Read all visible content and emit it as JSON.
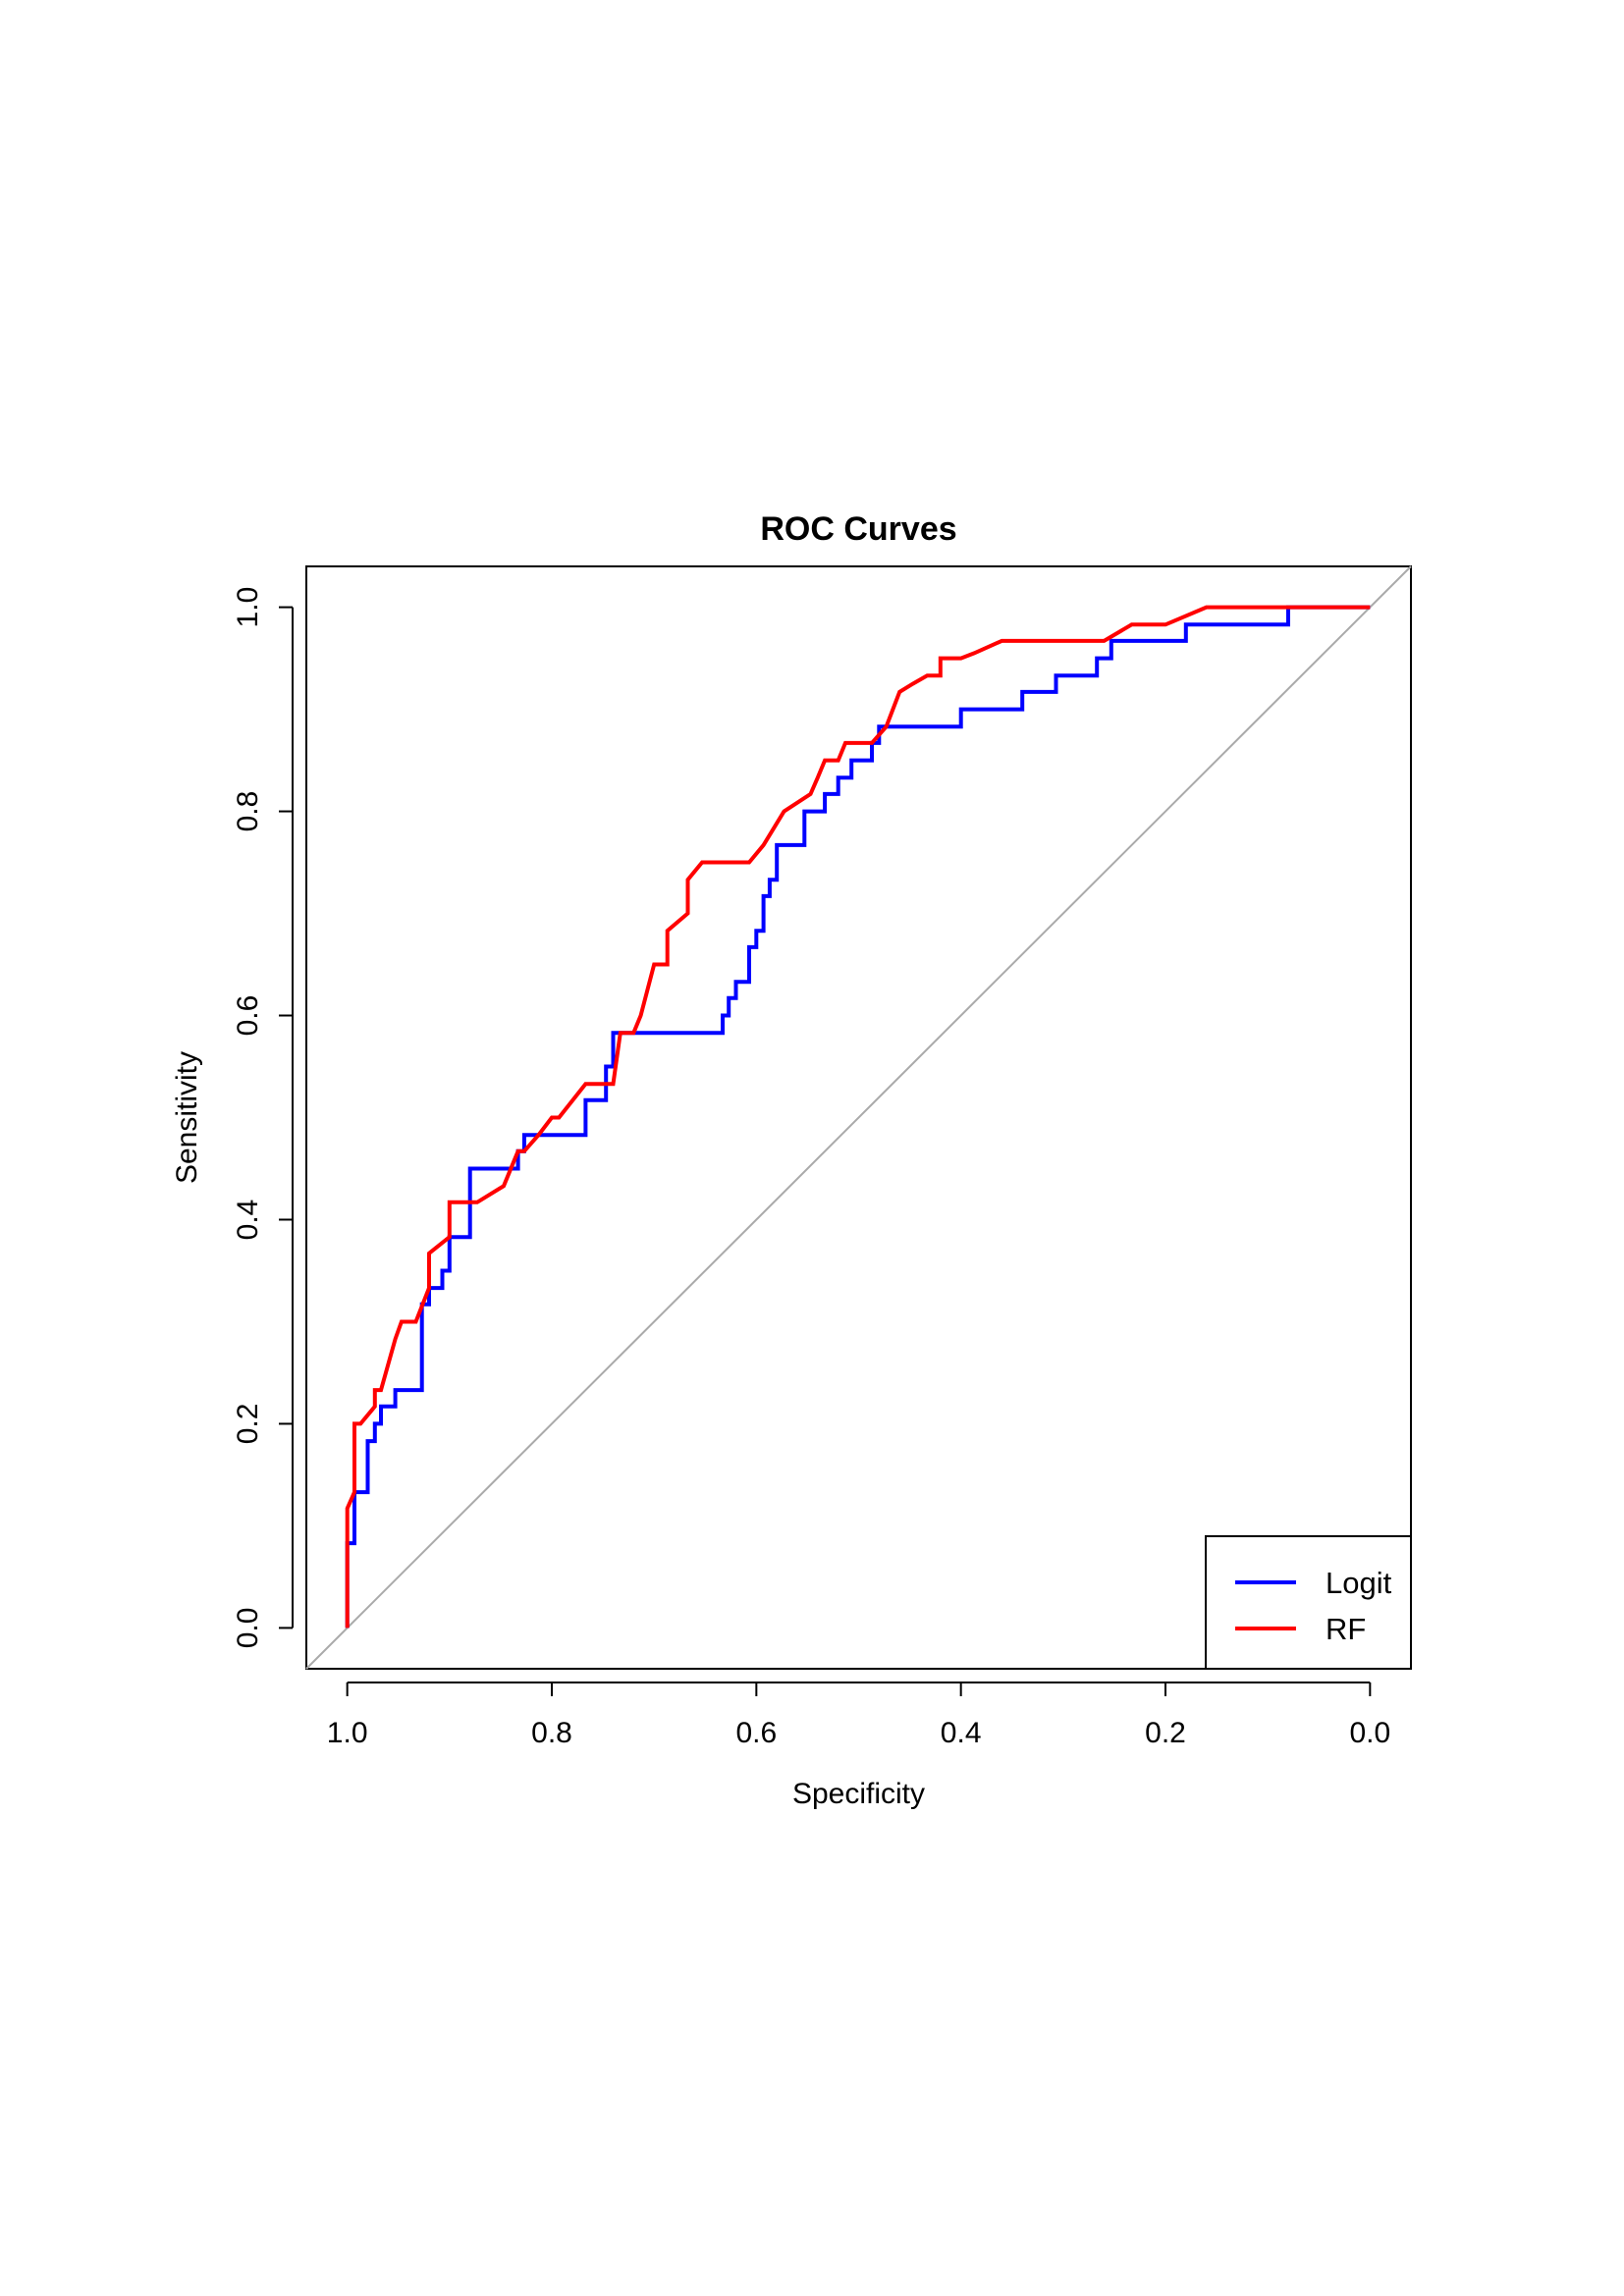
{
  "chart_data": {
    "type": "line",
    "title": "ROC Curves",
    "xlabel": "Specificity",
    "ylabel": "Sensitivity",
    "xlim": [
      1.04,
      -0.04
    ],
    "ylim": [
      -0.04,
      1.04
    ],
    "x_reversed": true,
    "xticks": [
      "1.0",
      "0.8",
      "0.6",
      "0.4",
      "0.2",
      "0.0"
    ],
    "yticks": [
      "0.0",
      "0.2",
      "0.4",
      "0.6",
      "0.8",
      "1.0"
    ],
    "grid": false,
    "legend_position": "bottom-right",
    "reference_line": {
      "from": [
        1.0,
        0.0
      ],
      "to": [
        0.0,
        1.0
      ],
      "color": "#aaaaaa"
    },
    "series": [
      {
        "name": "Logit",
        "color": "#0000ff",
        "step": true,
        "points": [
          [
            1.0,
            0.0
          ],
          [
            1.0,
            0.083
          ],
          [
            0.993,
            0.083
          ],
          [
            0.993,
            0.133
          ],
          [
            0.98,
            0.133
          ],
          [
            0.98,
            0.183
          ],
          [
            0.973,
            0.183
          ],
          [
            0.973,
            0.2
          ],
          [
            0.967,
            0.2
          ],
          [
            0.967,
            0.217
          ],
          [
            0.953,
            0.217
          ],
          [
            0.953,
            0.233
          ],
          [
            0.927,
            0.233
          ],
          [
            0.927,
            0.317
          ],
          [
            0.92,
            0.317
          ],
          [
            0.92,
            0.333
          ],
          [
            0.907,
            0.333
          ],
          [
            0.907,
            0.35
          ],
          [
            0.9,
            0.35
          ],
          [
            0.9,
            0.383
          ],
          [
            0.88,
            0.383
          ],
          [
            0.88,
            0.45
          ],
          [
            0.833,
            0.45
          ],
          [
            0.833,
            0.467
          ],
          [
            0.827,
            0.467
          ],
          [
            0.827,
            0.483
          ],
          [
            0.767,
            0.483
          ],
          [
            0.767,
            0.517
          ],
          [
            0.747,
            0.517
          ],
          [
            0.747,
            0.55
          ],
          [
            0.74,
            0.55
          ],
          [
            0.74,
            0.583
          ],
          [
            0.633,
            0.583
          ],
          [
            0.633,
            0.6
          ],
          [
            0.627,
            0.6
          ],
          [
            0.627,
            0.617
          ],
          [
            0.62,
            0.617
          ],
          [
            0.62,
            0.633
          ],
          [
            0.607,
            0.633
          ],
          [
            0.607,
            0.667
          ],
          [
            0.6,
            0.667
          ],
          [
            0.6,
            0.683
          ],
          [
            0.593,
            0.683
          ],
          [
            0.593,
            0.717
          ],
          [
            0.587,
            0.717
          ],
          [
            0.587,
            0.733
          ],
          [
            0.58,
            0.733
          ],
          [
            0.58,
            0.767
          ],
          [
            0.553,
            0.767
          ],
          [
            0.553,
            0.8
          ],
          [
            0.533,
            0.8
          ],
          [
            0.533,
            0.817
          ],
          [
            0.52,
            0.817
          ],
          [
            0.52,
            0.833
          ],
          [
            0.507,
            0.833
          ],
          [
            0.507,
            0.85
          ],
          [
            0.487,
            0.85
          ],
          [
            0.487,
            0.867
          ],
          [
            0.48,
            0.867
          ],
          [
            0.48,
            0.883
          ],
          [
            0.4,
            0.883
          ],
          [
            0.4,
            0.9
          ],
          [
            0.34,
            0.9
          ],
          [
            0.34,
            0.917
          ],
          [
            0.307,
            0.917
          ],
          [
            0.307,
            0.933
          ],
          [
            0.267,
            0.933
          ],
          [
            0.267,
            0.95
          ],
          [
            0.253,
            0.95
          ],
          [
            0.253,
            0.967
          ],
          [
            0.18,
            0.967
          ],
          [
            0.18,
            0.983
          ],
          [
            0.08,
            0.983
          ],
          [
            0.08,
            1.0
          ],
          [
            0.0,
            1.0
          ]
        ]
      },
      {
        "name": "RF",
        "color": "#ff0000",
        "step": false,
        "points": [
          [
            1.0,
            0.0
          ],
          [
            1.0,
            0.117
          ],
          [
            0.993,
            0.133
          ],
          [
            0.993,
            0.2
          ],
          [
            0.987,
            0.2
          ],
          [
            0.973,
            0.217
          ],
          [
            0.973,
            0.233
          ],
          [
            0.967,
            0.233
          ],
          [
            0.953,
            0.283
          ],
          [
            0.947,
            0.3
          ],
          [
            0.933,
            0.3
          ],
          [
            0.92,
            0.333
          ],
          [
            0.92,
            0.367
          ],
          [
            0.9,
            0.383
          ],
          [
            0.9,
            0.417
          ],
          [
            0.873,
            0.417
          ],
          [
            0.847,
            0.433
          ],
          [
            0.833,
            0.467
          ],
          [
            0.827,
            0.467
          ],
          [
            0.813,
            0.483
          ],
          [
            0.8,
            0.5
          ],
          [
            0.793,
            0.5
          ],
          [
            0.767,
            0.533
          ],
          [
            0.74,
            0.533
          ],
          [
            0.733,
            0.583
          ],
          [
            0.72,
            0.583
          ],
          [
            0.713,
            0.6
          ],
          [
            0.7,
            0.65
          ],
          [
            0.687,
            0.65
          ],
          [
            0.687,
            0.683
          ],
          [
            0.667,
            0.7
          ],
          [
            0.667,
            0.733
          ],
          [
            0.653,
            0.75
          ],
          [
            0.607,
            0.75
          ],
          [
            0.593,
            0.767
          ],
          [
            0.573,
            0.8
          ],
          [
            0.547,
            0.817
          ],
          [
            0.54,
            0.833
          ],
          [
            0.533,
            0.85
          ],
          [
            0.52,
            0.85
          ],
          [
            0.513,
            0.867
          ],
          [
            0.5,
            0.867
          ],
          [
            0.487,
            0.867
          ],
          [
            0.473,
            0.883
          ],
          [
            0.46,
            0.917
          ],
          [
            0.447,
            0.925
          ],
          [
            0.433,
            0.933
          ],
          [
            0.42,
            0.933
          ],
          [
            0.42,
            0.95
          ],
          [
            0.4,
            0.95
          ],
          [
            0.387,
            0.955
          ],
          [
            0.36,
            0.967
          ],
          [
            0.313,
            0.967
          ],
          [
            0.26,
            0.967
          ],
          [
            0.233,
            0.983
          ],
          [
            0.2,
            0.983
          ],
          [
            0.16,
            1.0
          ],
          [
            0.0,
            1.0
          ]
        ]
      }
    ]
  }
}
